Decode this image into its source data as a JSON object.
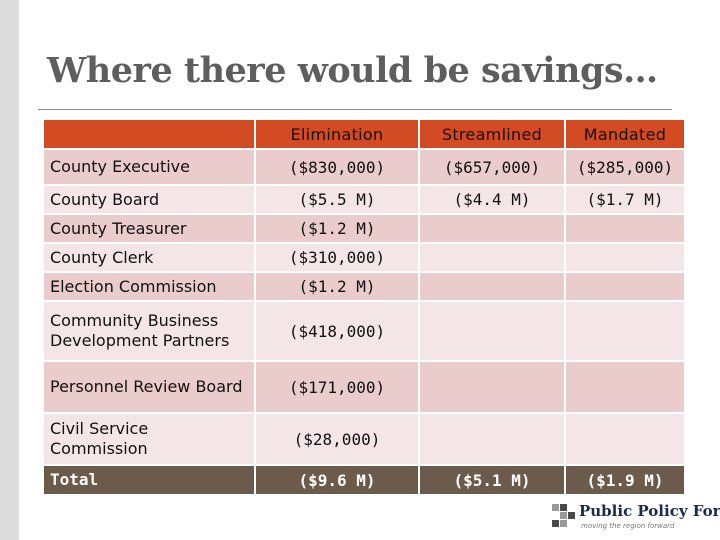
{
  "slide": {
    "title": "Where there would be savings…"
  },
  "table": {
    "columns": [
      "",
      "Elimination",
      "Streamlined",
      "Mandated"
    ],
    "rows": [
      {
        "label": "County Executive",
        "elimination": "($830,000)",
        "streamlined": "($657,000)",
        "mandated": "($285,000)"
      },
      {
        "label": "County Board",
        "elimination": "($5.5 M)",
        "streamlined": "($4.4 M)",
        "mandated": "($1.7 M)"
      },
      {
        "label": "County Treasurer",
        "elimination": "($1.2 M)",
        "streamlined": "",
        "mandated": ""
      },
      {
        "label": "County Clerk",
        "elimination": "($310,000)",
        "streamlined": "",
        "mandated": ""
      },
      {
        "label": "Election Commission",
        "elimination": "($1.2 M)",
        "streamlined": "",
        "mandated": ""
      },
      {
        "label": "Community Business Development Partners",
        "elimination": "($418,000)",
        "streamlined": "",
        "mandated": ""
      },
      {
        "label": "Personnel Review Board",
        "elimination": "($171,000)",
        "streamlined": "",
        "mandated": ""
      },
      {
        "label": "Civil Service Commission",
        "elimination": "($28,000)",
        "streamlined": "",
        "mandated": ""
      }
    ],
    "total": {
      "label": "Total",
      "elimination": "($9.6 M)",
      "streamlined": "($5.1 M)",
      "mandated": "($1.9 M)"
    }
  },
  "logo": {
    "name": "Public Policy Forum",
    "tagline": "moving the region forward",
    "icon": "ppf-logo-mark"
  },
  "colors": {
    "header": "#d24b22",
    "row_dark": "#e9cccb",
    "row_light": "#f4e6e6",
    "total": "#6b5b4b",
    "title": "#5e5e5e"
  }
}
